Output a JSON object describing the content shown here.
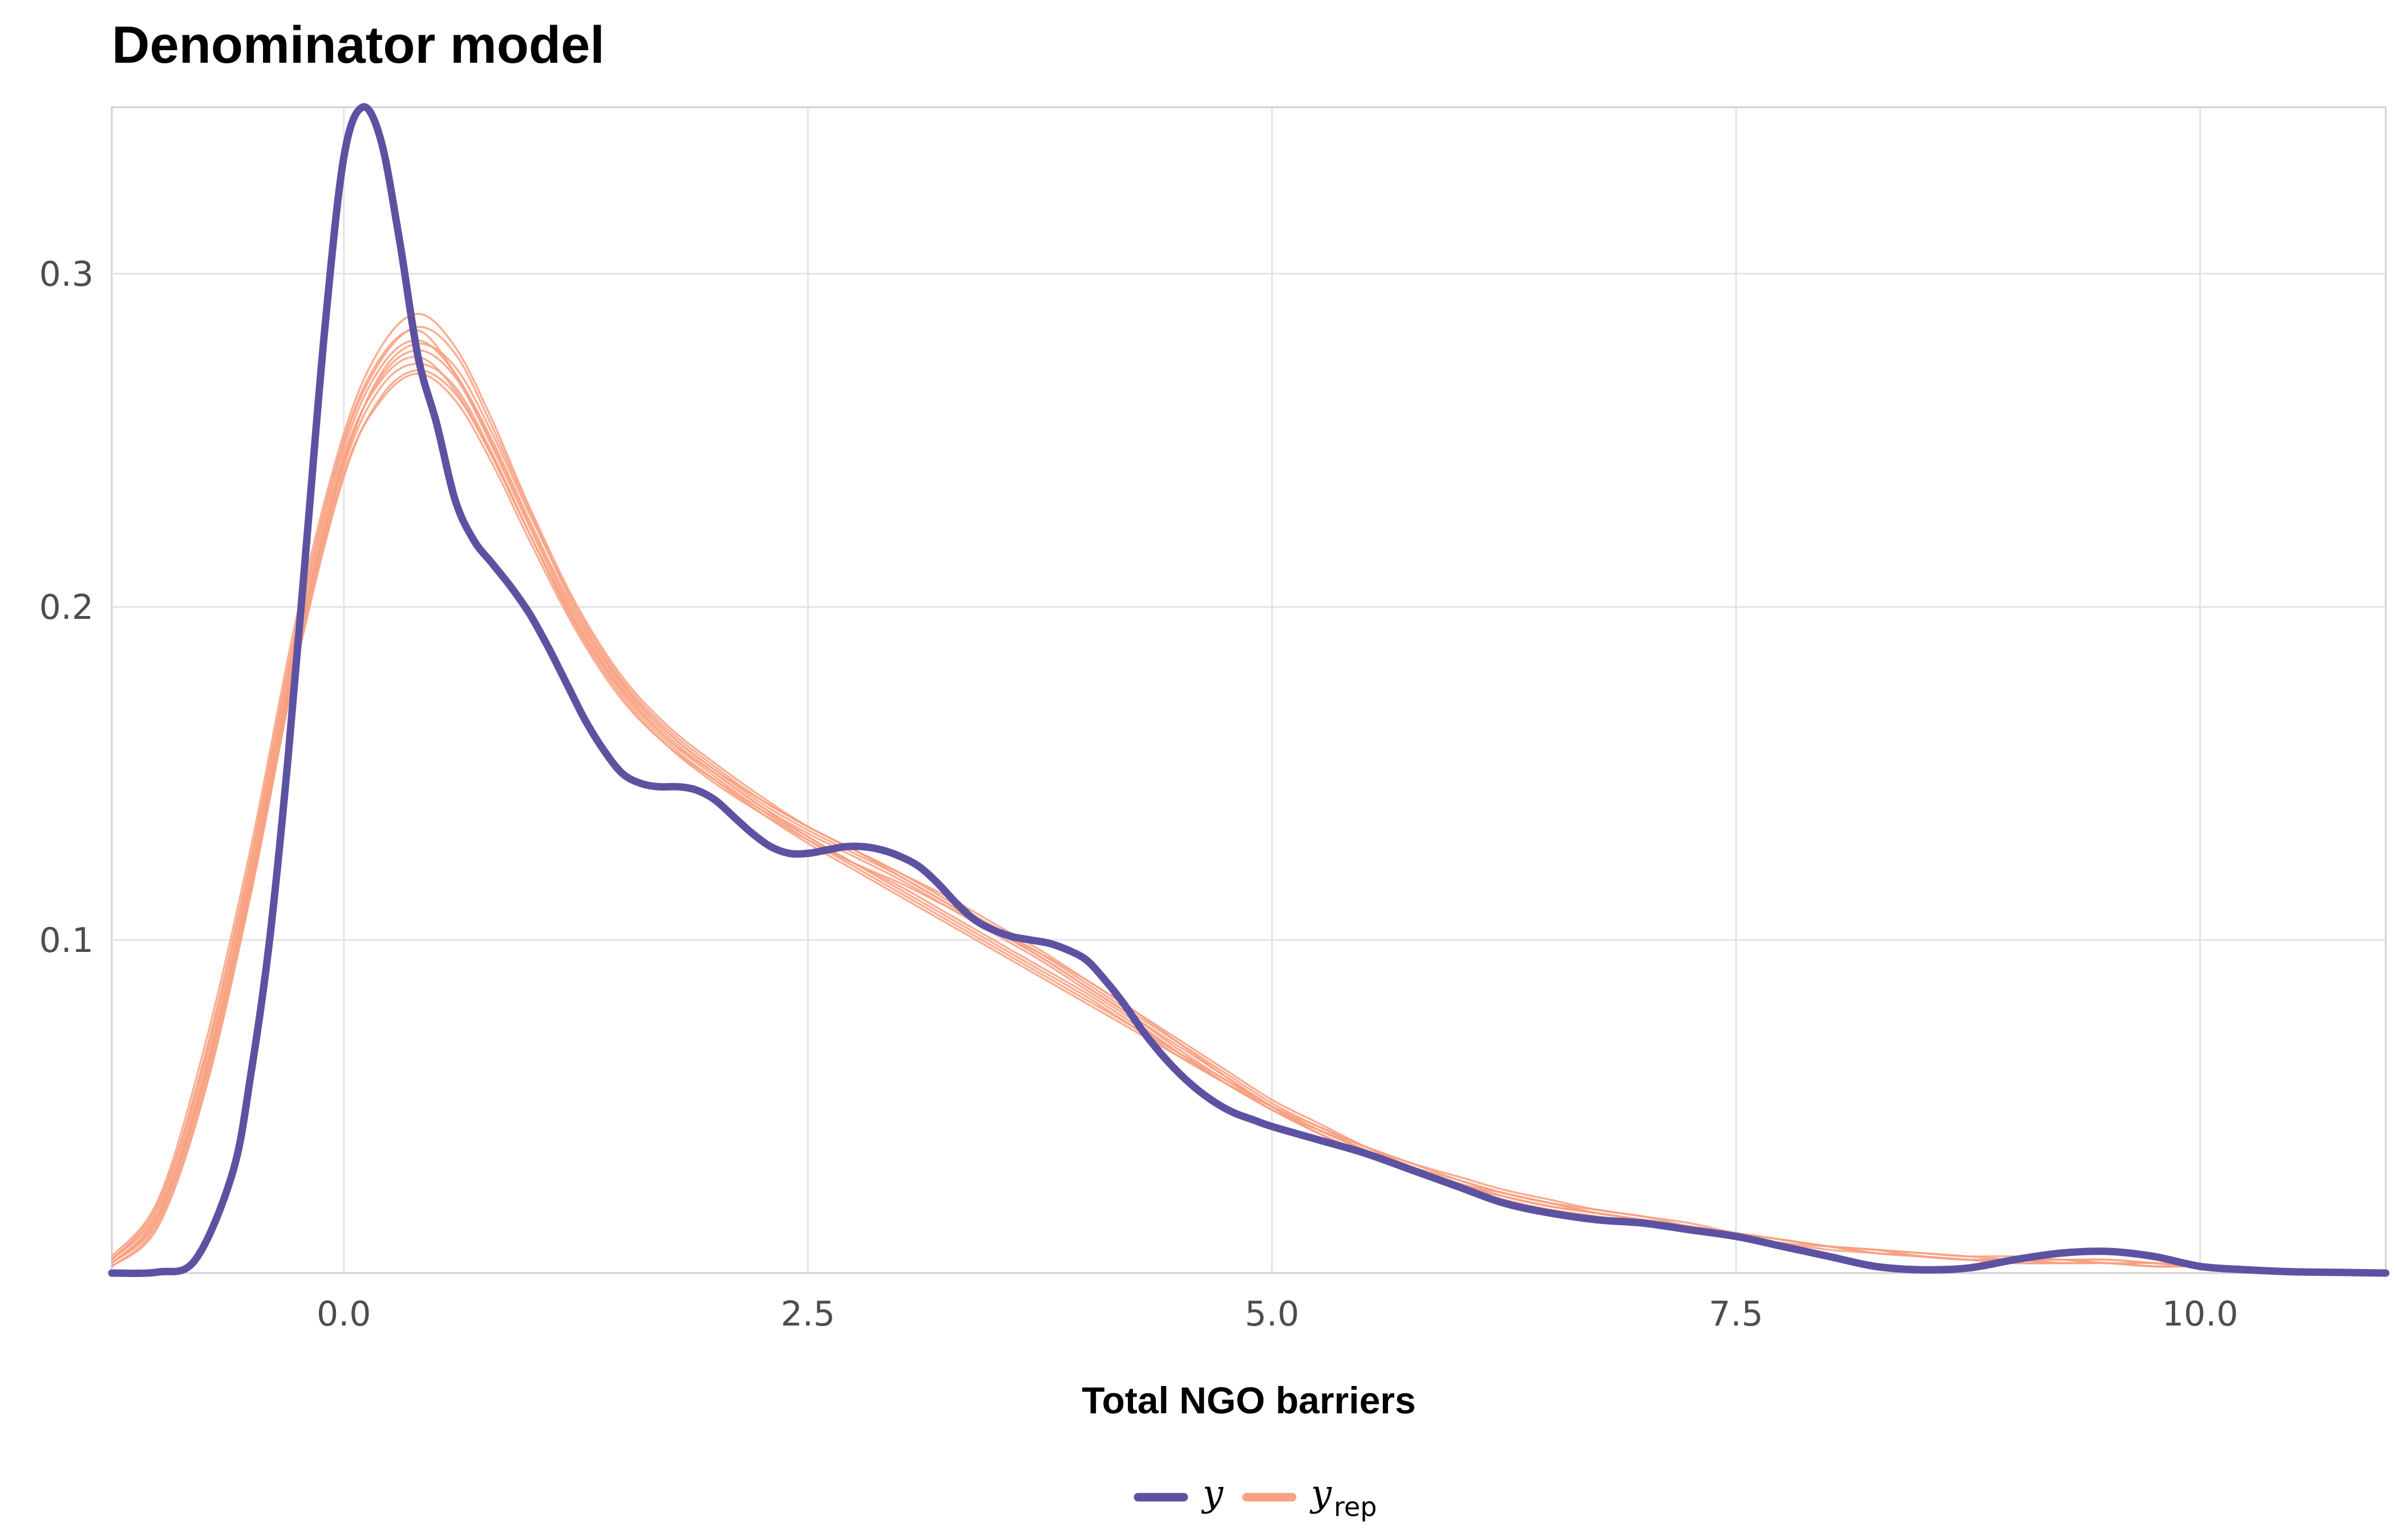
{
  "chart_data": {
    "type": "line",
    "title": "Denominator model",
    "xlabel": "Total NGO barriers",
    "ylabel": "",
    "xlim": [
      -1.25,
      11.0
    ],
    "ylim": [
      0.0,
      0.35
    ],
    "xticks": [
      {
        "value": 0.0,
        "label": "0.0"
      },
      {
        "value": 2.5,
        "label": "2.5"
      },
      {
        "value": 5.0,
        "label": "5.0"
      },
      {
        "value": 7.5,
        "label": "7.5"
      },
      {
        "value": 10.0,
        "label": "10.0"
      }
    ],
    "yticks": [
      {
        "value": 0.1,
        "label": "0.1"
      },
      {
        "value": 0.2,
        "label": "0.2"
      },
      {
        "value": 0.3,
        "label": "0.3"
      }
    ],
    "grid": true,
    "legend_position": "bottom",
    "legend": [
      {
        "key": "y",
        "label": "y",
        "subscript": "",
        "color": "#5d52a2"
      },
      {
        "key": "yrep",
        "label": "y",
        "subscript": "rep",
        "color": "#f8a080"
      }
    ],
    "observed": {
      "name": "y",
      "color": "#5d52a2",
      "x": [
        -1.25,
        -1.0,
        -0.8,
        -0.6,
        -0.5,
        -0.4,
        -0.3,
        -0.2,
        -0.1,
        0.0,
        0.1,
        0.2,
        0.3,
        0.4,
        0.5,
        0.6,
        0.7,
        0.8,
        0.9,
        1.0,
        1.1,
        1.2,
        1.3,
        1.4,
        1.5,
        1.6,
        1.7,
        1.8,
        1.9,
        2.0,
        2.1,
        2.2,
        2.3,
        2.4,
        2.5,
        2.6,
        2.7,
        2.8,
        2.9,
        3.0,
        3.1,
        3.2,
        3.3,
        3.4,
        3.5,
        3.6,
        3.7,
        3.8,
        3.9,
        4.0,
        4.1,
        4.2,
        4.3,
        4.4,
        4.5,
        4.6,
        4.7,
        4.8,
        4.9,
        5.0,
        5.25,
        5.5,
        5.75,
        6.0,
        6.25,
        6.5,
        6.75,
        7.0,
        7.25,
        7.5,
        7.75,
        8.0,
        8.25,
        8.5,
        8.75,
        9.0,
        9.25,
        9.5,
        9.75,
        10.0,
        10.25,
        10.5,
        10.75,
        11.0
      ],
      "y": [
        0.0,
        0.0003,
        0.004,
        0.03,
        0.06,
        0.1,
        0.155,
        0.22,
        0.285,
        0.335,
        0.35,
        0.34,
        0.31,
        0.275,
        0.255,
        0.232,
        0.22,
        0.213,
        0.206,
        0.198,
        0.188,
        0.177,
        0.166,
        0.157,
        0.15,
        0.147,
        0.146,
        0.146,
        0.145,
        0.142,
        0.137,
        0.132,
        0.128,
        0.126,
        0.126,
        0.127,
        0.128,
        0.128,
        0.127,
        0.125,
        0.122,
        0.117,
        0.111,
        0.106,
        0.103,
        0.101,
        0.1,
        0.099,
        0.097,
        0.094,
        0.088,
        0.081,
        0.073,
        0.066,
        0.06,
        0.055,
        0.051,
        0.048,
        0.046,
        0.044,
        0.04,
        0.036,
        0.031,
        0.026,
        0.021,
        0.018,
        0.016,
        0.015,
        0.013,
        0.011,
        0.008,
        0.005,
        0.002,
        0.001,
        0.0015,
        0.004,
        0.006,
        0.0065,
        0.005,
        0.002,
        0.001,
        0.0004,
        0.0002,
        0.0
      ]
    },
    "replicates": {
      "name": "y_rep",
      "color": "#f8a080",
      "x": [
        -1.25,
        -1.0,
        -0.75,
        -0.5,
        -0.25,
        0.0,
        0.2,
        0.4,
        0.6,
        0.8,
        1.0,
        1.25,
        1.5,
        1.75,
        2.0,
        2.25,
        2.5,
        2.75,
        3.0,
        3.25,
        3.5,
        3.75,
        4.0,
        4.25,
        4.5,
        4.75,
        5.0,
        5.25,
        5.5,
        5.75,
        6.0,
        6.25,
        6.5,
        6.75,
        7.0,
        7.25,
        7.5,
        7.75,
        8.0,
        8.25,
        8.5,
        8.75,
        9.0,
        9.25,
        9.5,
        9.75,
        10.0,
        10.5,
        11.0
      ],
      "series": [
        {
          "values": [
            0.003,
            0.018,
            0.06,
            0.12,
            0.19,
            0.245,
            0.268,
            0.275,
            0.265,
            0.245,
            0.222,
            0.195,
            0.175,
            0.16,
            0.15,
            0.14,
            0.132,
            0.125,
            0.118,
            0.11,
            0.102,
            0.094,
            0.085,
            0.076,
            0.066,
            0.057,
            0.049,
            0.042,
            0.036,
            0.031,
            0.027,
            0.023,
            0.02,
            0.018,
            0.016,
            0.014,
            0.012,
            0.01,
            0.008,
            0.007,
            0.005,
            0.004,
            0.004,
            0.003,
            0.003,
            0.002,
            0.002,
            0.001,
            0.0
          ]
        },
        {
          "values": [
            0.004,
            0.02,
            0.065,
            0.125,
            0.195,
            0.25,
            0.275,
            0.283,
            0.27,
            0.25,
            0.226,
            0.198,
            0.177,
            0.162,
            0.151,
            0.141,
            0.133,
            0.126,
            0.119,
            0.111,
            0.103,
            0.095,
            0.086,
            0.077,
            0.068,
            0.059,
            0.05,
            0.043,
            0.037,
            0.032,
            0.027,
            0.024,
            0.021,
            0.018,
            0.016,
            0.014,
            0.012,
            0.01,
            0.008,
            0.006,
            0.005,
            0.004,
            0.004,
            0.004,
            0.003,
            0.003,
            0.002,
            0.001,
            0.0
          ]
        },
        {
          "values": [
            0.002,
            0.015,
            0.055,
            0.115,
            0.185,
            0.24,
            0.262,
            0.27,
            0.262,
            0.243,
            0.22,
            0.193,
            0.172,
            0.158,
            0.148,
            0.139,
            0.131,
            0.123,
            0.116,
            0.108,
            0.1,
            0.092,
            0.084,
            0.075,
            0.066,
            0.057,
            0.049,
            0.042,
            0.036,
            0.031,
            0.026,
            0.022,
            0.019,
            0.017,
            0.015,
            0.013,
            0.011,
            0.009,
            0.007,
            0.006,
            0.005,
            0.004,
            0.003,
            0.003,
            0.003,
            0.002,
            0.002,
            0.001,
            0.0
          ]
        },
        {
          "values": [
            0.003,
            0.017,
            0.058,
            0.118,
            0.188,
            0.243,
            0.27,
            0.279,
            0.272,
            0.252,
            0.228,
            0.2,
            0.178,
            0.163,
            0.152,
            0.142,
            0.134,
            0.127,
            0.12,
            0.112,
            0.104,
            0.096,
            0.087,
            0.078,
            0.069,
            0.06,
            0.051,
            0.044,
            0.038,
            0.032,
            0.028,
            0.024,
            0.021,
            0.019,
            0.017,
            0.015,
            0.012,
            0.01,
            0.008,
            0.007,
            0.006,
            0.005,
            0.004,
            0.004,
            0.004,
            0.003,
            0.002,
            0.001,
            0.0
          ]
        },
        {
          "values": [
            0.005,
            0.022,
            0.068,
            0.128,
            0.198,
            0.252,
            0.278,
            0.288,
            0.278,
            0.256,
            0.23,
            0.201,
            0.179,
            0.164,
            0.153,
            0.143,
            0.134,
            0.127,
            0.119,
            0.111,
            0.103,
            0.095,
            0.086,
            0.077,
            0.067,
            0.058,
            0.05,
            0.043,
            0.037,
            0.031,
            0.027,
            0.023,
            0.02,
            0.018,
            0.016,
            0.014,
            0.012,
            0.01,
            0.008,
            0.006,
            0.005,
            0.004,
            0.004,
            0.003,
            0.003,
            0.002,
            0.002,
            0.001,
            0.0
          ]
        },
        {
          "values": [
            0.003,
            0.016,
            0.057,
            0.117,
            0.187,
            0.242,
            0.266,
            0.273,
            0.266,
            0.246,
            0.222,
            0.194,
            0.173,
            0.158,
            0.147,
            0.138,
            0.13,
            0.123,
            0.117,
            0.11,
            0.103,
            0.096,
            0.088,
            0.079,
            0.07,
            0.061,
            0.052,
            0.045,
            0.038,
            0.032,
            0.027,
            0.023,
            0.02,
            0.018,
            0.016,
            0.014,
            0.012,
            0.01,
            0.008,
            0.007,
            0.005,
            0.004,
            0.004,
            0.004,
            0.003,
            0.003,
            0.002,
            0.001,
            0.0
          ]
        },
        {
          "values": [
            0.004,
            0.019,
            0.062,
            0.122,
            0.192,
            0.247,
            0.272,
            0.28,
            0.27,
            0.249,
            0.225,
            0.197,
            0.176,
            0.161,
            0.15,
            0.14,
            0.131,
            0.123,
            0.115,
            0.107,
            0.099,
            0.091,
            0.083,
            0.074,
            0.065,
            0.057,
            0.049,
            0.043,
            0.038,
            0.033,
            0.029,
            0.025,
            0.022,
            0.019,
            0.017,
            0.014,
            0.012,
            0.01,
            0.008,
            0.006,
            0.005,
            0.004,
            0.004,
            0.003,
            0.003,
            0.002,
            0.002,
            0.001,
            0.0
          ]
        },
        {
          "values": [
            0.003,
            0.017,
            0.059,
            0.119,
            0.189,
            0.244,
            0.269,
            0.277,
            0.269,
            0.248,
            0.224,
            0.196,
            0.175,
            0.16,
            0.149,
            0.139,
            0.13,
            0.122,
            0.114,
            0.106,
            0.098,
            0.09,
            0.082,
            0.074,
            0.066,
            0.058,
            0.05,
            0.043,
            0.037,
            0.031,
            0.026,
            0.022,
            0.019,
            0.017,
            0.015,
            0.013,
            0.011,
            0.009,
            0.008,
            0.007,
            0.006,
            0.005,
            0.005,
            0.004,
            0.004,
            0.003,
            0.002,
            0.001,
            0.0
          ]
        },
        {
          "values": [
            0.004,
            0.021,
            0.064,
            0.124,
            0.194,
            0.249,
            0.274,
            0.284,
            0.276,
            0.254,
            0.229,
            0.199,
            0.177,
            0.162,
            0.151,
            0.142,
            0.134,
            0.127,
            0.12,
            0.113,
            0.105,
            0.097,
            0.088,
            0.079,
            0.069,
            0.059,
            0.05,
            0.042,
            0.036,
            0.031,
            0.026,
            0.023,
            0.02,
            0.018,
            0.016,
            0.014,
            0.012,
            0.01,
            0.008,
            0.006,
            0.005,
            0.004,
            0.003,
            0.003,
            0.003,
            0.002,
            0.002,
            0.001,
            0.0
          ]
        },
        {
          "values": [
            0.002,
            0.014,
            0.054,
            0.114,
            0.184,
            0.239,
            0.263,
            0.271,
            0.264,
            0.245,
            0.222,
            0.195,
            0.174,
            0.159,
            0.148,
            0.138,
            0.129,
            0.121,
            0.113,
            0.105,
            0.097,
            0.089,
            0.081,
            0.073,
            0.065,
            0.057,
            0.05,
            0.044,
            0.038,
            0.033,
            0.028,
            0.024,
            0.021,
            0.018,
            0.016,
            0.014,
            0.012,
            0.01,
            0.008,
            0.006,
            0.005,
            0.004,
            0.004,
            0.003,
            0.003,
            0.002,
            0.002,
            0.001,
            0.0
          ]
        }
      ]
    }
  }
}
